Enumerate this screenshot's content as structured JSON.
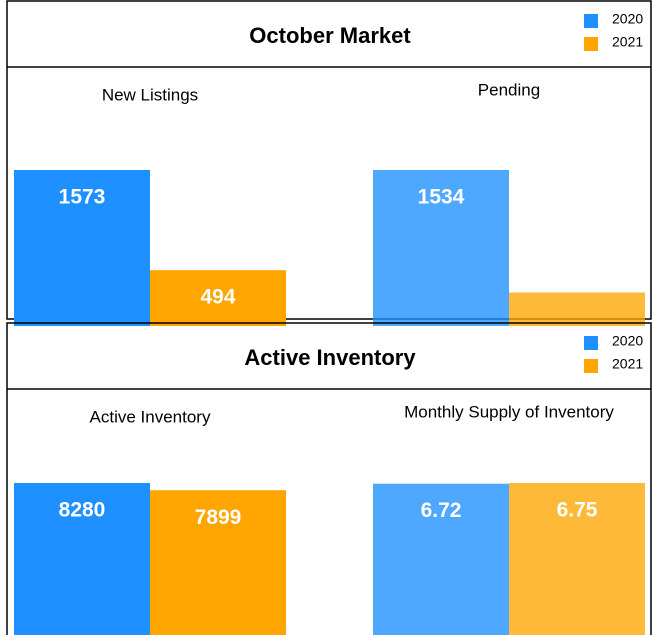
{
  "chart_data": [
    {
      "type": "bar",
      "title": "October Market",
      "series": [
        {
          "name": "2020",
          "color": "#1e90ff"
        },
        {
          "name": "2021",
          "color": "#ffa500"
        }
      ],
      "charts": [
        {
          "title": "New Listings",
          "values": [
            1573,
            494
          ]
        },
        {
          "title": "Pending",
          "values": [
            1534,
            247
          ],
          "value_labels": [
            "1534",
            null
          ]
        }
      ]
    },
    {
      "type": "bar",
      "title": "Active Inventory",
      "series": [
        {
          "name": "2020",
          "color": "#1e90ff"
        },
        {
          "name": "2021",
          "color": "#ffa500"
        }
      ],
      "charts": [
        {
          "title": "Active Inventory",
          "values": [
            8280,
            7899
          ]
        },
        {
          "title": "Monthly Supply of Inventory",
          "values": [
            6.72,
            6.75
          ]
        }
      ]
    }
  ]
}
